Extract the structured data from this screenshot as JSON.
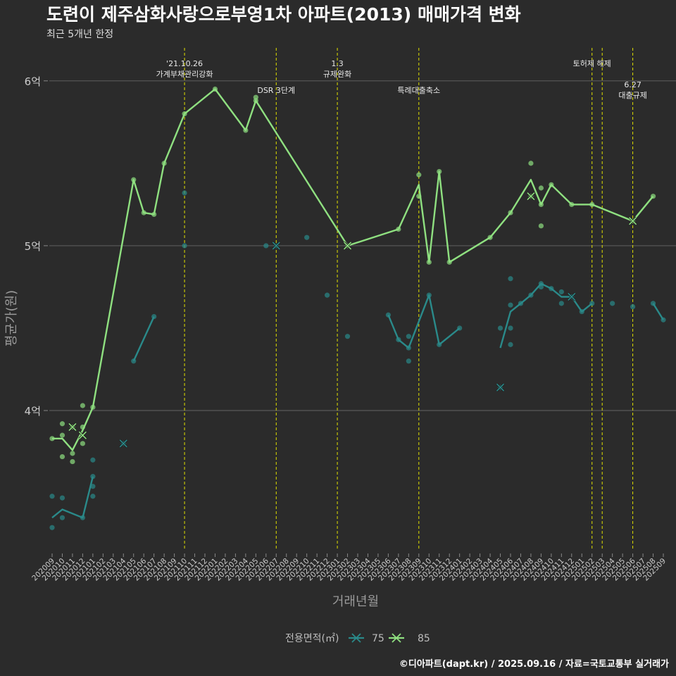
{
  "title": "도련이 제주삼화사랑으로부영1차 아파트(2013) 매매가격 변화",
  "subtitle": "최근 5개년 한정",
  "caption": "©디아파트(dapt.kr) / 2025.09.16 / 자료=국토교통부 실거래가",
  "colors": {
    "background": "#2b2b2b",
    "grid": "#5a5a5a",
    "event_line": "#e0e000",
    "series_75": "#2a8a8a",
    "series_85": "#8fe080"
  },
  "chart_data": {
    "type": "line",
    "xlabel": "거래년월",
    "ylabel": "평균가(원)",
    "x_categories": [
      "202009",
      "202010",
      "202011",
      "202012",
      "202101",
      "202102",
      "202103",
      "202104",
      "202105",
      "202106",
      "202107",
      "202108",
      "202109",
      "202110",
      "202111",
      "202112",
      "202201",
      "202202",
      "202203",
      "202204",
      "202205",
      "202206",
      "202207",
      "202208",
      "202209",
      "202210",
      "202211",
      "202212",
      "202301",
      "202302",
      "202303",
      "202304",
      "202305",
      "202306",
      "202307",
      "202308",
      "202309",
      "202310",
      "202311",
      "202312",
      "202401",
      "202402",
      "202403",
      "202404",
      "202405",
      "202406",
      "202407",
      "202408",
      "202409",
      "202410",
      "202411",
      "202412",
      "202501",
      "202502",
      "202503",
      "202504",
      "202505",
      "202506",
      "202507",
      "202508",
      "202509"
    ],
    "y_ticks": [
      {
        "value": 4,
        "label": "4억"
      },
      {
        "value": 5,
        "label": "5억"
      },
      {
        "value": 6,
        "label": "6억"
      }
    ],
    "ylim": [
      3.15,
      6.2
    ],
    "legend": {
      "title": "전용면적(㎡)",
      "position": "bottom",
      "entries": [
        "75",
        "85"
      ]
    },
    "events": [
      {
        "x": "202110",
        "lines": [
          "'21.10.26",
          "가계부채관리강화"
        ],
        "row": 0
      },
      {
        "x": "202207",
        "lines": [
          "DSR 3단계"
        ],
        "row": 1
      },
      {
        "x": "202301",
        "lines": [
          "1.3",
          "규제완화"
        ],
        "row": 0
      },
      {
        "x": "202309",
        "lines": [
          "특례대출축소"
        ],
        "row": 1
      },
      {
        "x": "202502",
        "lines": [
          "토허제 해제"
        ],
        "row": 0
      },
      {
        "x": "202503",
        "lines": [],
        "row": 0
      },
      {
        "x": "202506",
        "lines": [
          "6.27",
          "대출규제"
        ],
        "row": 2
      }
    ],
    "series": [
      {
        "name": "75",
        "line_segments": [
          [
            [
              "202009",
              3.35
            ],
            [
              "202010",
              3.4
            ],
            [
              "202012",
              3.35
            ],
            [
              "202101",
              3.6
            ]
          ],
          [
            [
              "202105",
              4.3
            ],
            [
              "202107",
              4.57
            ]
          ],
          [
            [
              "202306",
              4.58
            ],
            [
              "202307",
              4.43
            ],
            [
              "202308",
              4.38
            ],
            [
              "202310",
              4.7
            ],
            [
              "202311",
              4.4
            ],
            [
              "202401",
              4.5
            ]
          ],
          [
            [
              "202405",
              4.38
            ],
            [
              "202406",
              4.6
            ],
            [
              "202407",
              4.65
            ],
            [
              "202408",
              4.7
            ],
            [
              "202409",
              4.77
            ],
            [
              "202410",
              4.74
            ],
            [
              "202411",
              4.69
            ],
            [
              "202412",
              4.69
            ],
            [
              "202501",
              4.6
            ],
            [
              "202502",
              4.65
            ]
          ],
          [
            [
              "202508",
              4.65
            ],
            [
              "202509",
              4.55
            ]
          ]
        ],
        "points": [
          [
            "202009",
            3.48
          ],
          [
            "202009",
            3.29
          ],
          [
            "202010",
            3.47
          ],
          [
            "202010",
            3.35
          ],
          [
            "202012",
            3.35
          ],
          [
            "202101",
            3.6
          ],
          [
            "202101",
            3.54
          ],
          [
            "202101",
            3.48
          ],
          [
            "202101",
            3.7
          ],
          [
            "202104",
            3.8
          ],
          [
            "202105",
            4.3
          ],
          [
            "202107",
            4.57
          ],
          [
            "202110",
            5.32
          ],
          [
            "202110",
            5.0
          ],
          [
            "202206",
            5.0
          ],
          [
            "202207",
            5.0
          ],
          [
            "202210",
            5.05
          ],
          [
            "202212",
            4.7
          ],
          [
            "202302",
            4.45
          ],
          [
            "202306",
            4.58
          ],
          [
            "202307",
            4.43
          ],
          [
            "202308",
            4.45
          ],
          [
            "202308",
            4.38
          ],
          [
            "202308",
            4.3
          ],
          [
            "202310",
            4.7
          ],
          [
            "202311",
            4.4
          ],
          [
            "202401",
            4.5
          ],
          [
            "202405",
            4.5
          ],
          [
            "202405",
            4.14
          ],
          [
            "202406",
            4.5
          ],
          [
            "202406",
            4.4
          ],
          [
            "202406",
            4.64
          ],
          [
            "202406",
            4.8
          ],
          [
            "202407",
            4.65
          ],
          [
            "202408",
            4.7
          ],
          [
            "202409",
            4.77
          ],
          [
            "202409",
            4.75
          ],
          [
            "202410",
            4.74
          ],
          [
            "202411",
            4.72
          ],
          [
            "202411",
            4.65
          ],
          [
            "202412",
            4.69
          ],
          [
            "202501",
            4.6
          ],
          [
            "202502",
            4.65
          ],
          [
            "202504",
            4.65
          ],
          [
            "202506",
            4.63
          ],
          [
            "202508",
            4.65
          ],
          [
            "202509",
            4.55
          ]
        ],
        "avg_markers": [
          [
            "202104",
            3.8
          ],
          [
            "202207",
            5.0
          ],
          [
            "202405",
            4.14
          ],
          [
            "202412",
            4.69
          ]
        ]
      },
      {
        "name": "85",
        "line_segments": [
          [
            [
              "202009",
              3.83
            ],
            [
              "202010",
              3.83
            ],
            [
              "202011",
              3.76
            ],
            [
              "202012",
              3.88
            ],
            [
              "202101",
              4.02
            ],
            [
              "202105",
              5.4
            ],
            [
              "202106",
              5.2
            ],
            [
              "202107",
              5.19
            ],
            [
              "202108",
              5.5
            ],
            [
              "202110",
              5.8
            ],
            [
              "202201",
              5.95
            ],
            [
              "202204",
              5.7
            ],
            [
              "202205",
              5.88
            ],
            [
              "202302",
              5.0
            ],
            [
              "202307",
              5.1
            ],
            [
              "202309",
              5.37
            ],
            [
              "202310",
              4.9
            ],
            [
              "202311",
              5.45
            ],
            [
              "202312",
              4.9
            ],
            [
              "202404",
              5.05
            ],
            [
              "202406",
              5.2
            ],
            [
              "202408",
              5.4
            ],
            [
              "202409",
              5.25
            ],
            [
              "202410",
              5.37
            ],
            [
              "202412",
              5.25
            ],
            [
              "202502",
              5.25
            ],
            [
              "202506",
              5.15
            ],
            [
              "202508",
              5.3
            ]
          ]
        ],
        "points": [
          [
            "202009",
            3.83
          ],
          [
            "202010",
            3.92
          ],
          [
            "202010",
            3.85
          ],
          [
            "202010",
            3.72
          ],
          [
            "202011",
            3.9
          ],
          [
            "202011",
            3.74
          ],
          [
            "202011",
            3.69
          ],
          [
            "202012",
            4.03
          ],
          [
            "202012",
            3.9
          ],
          [
            "202012",
            3.8
          ],
          [
            "202101",
            4.02
          ],
          [
            "202105",
            5.4
          ],
          [
            "202106",
            5.2
          ],
          [
            "202107",
            5.19
          ],
          [
            "202108",
            5.5
          ],
          [
            "202110",
            5.8
          ],
          [
            "202201",
            5.95
          ],
          [
            "202204",
            5.7
          ],
          [
            "202205",
            5.88
          ],
          [
            "202205",
            5.9
          ],
          [
            "202302",
            5.0
          ],
          [
            "202307",
            5.1
          ],
          [
            "202309",
            5.43
          ],
          [
            "202309",
            5.3
          ],
          [
            "202310",
            4.9
          ],
          [
            "202311",
            5.45
          ],
          [
            "202312",
            4.9
          ],
          [
            "202404",
            5.05
          ],
          [
            "202406",
            5.2
          ],
          [
            "202408",
            5.5
          ],
          [
            "202408",
            5.3
          ],
          [
            "202409",
            5.35
          ],
          [
            "202409",
            5.25
          ],
          [
            "202409",
            5.12
          ],
          [
            "202410",
            5.37
          ],
          [
            "202412",
            5.25
          ],
          [
            "202502",
            5.25
          ],
          [
            "202506",
            5.15
          ],
          [
            "202508",
            5.3
          ]
        ],
        "avg_markers": [
          [
            "202011",
            3.9
          ],
          [
            "202012",
            3.85
          ],
          [
            "202302",
            5.0
          ],
          [
            "202408",
            5.3
          ],
          [
            "202506",
            5.15
          ]
        ]
      }
    ]
  }
}
